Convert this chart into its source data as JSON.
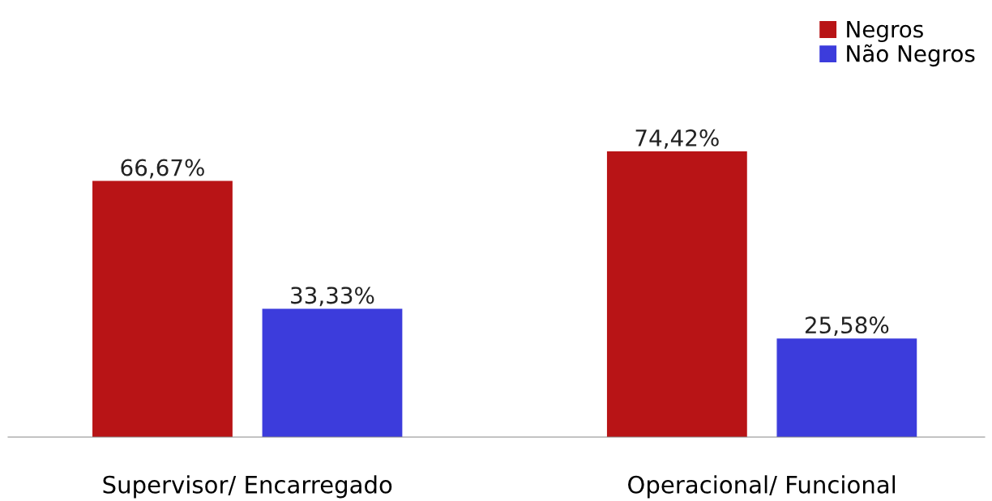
{
  "chart_data": {
    "type": "bar",
    "categories": [
      "Supervisor/ Encarregado",
      "Operacional/ Funcional"
    ],
    "series": [
      {
        "name": "Negros",
        "color": "#b81416",
        "values": [
          66.67,
          74.42
        ],
        "value_labels": [
          "66,67%",
          "74,42%"
        ]
      },
      {
        "name": "Não Negros",
        "color": "#3c3cdc",
        "values": [
          33.33,
          25.58
        ],
        "value_labels": [
          "33,33%",
          "25,58%"
        ]
      }
    ],
    "tick_labels": "x",
    "legend": "top right",
    "grid": false
  }
}
